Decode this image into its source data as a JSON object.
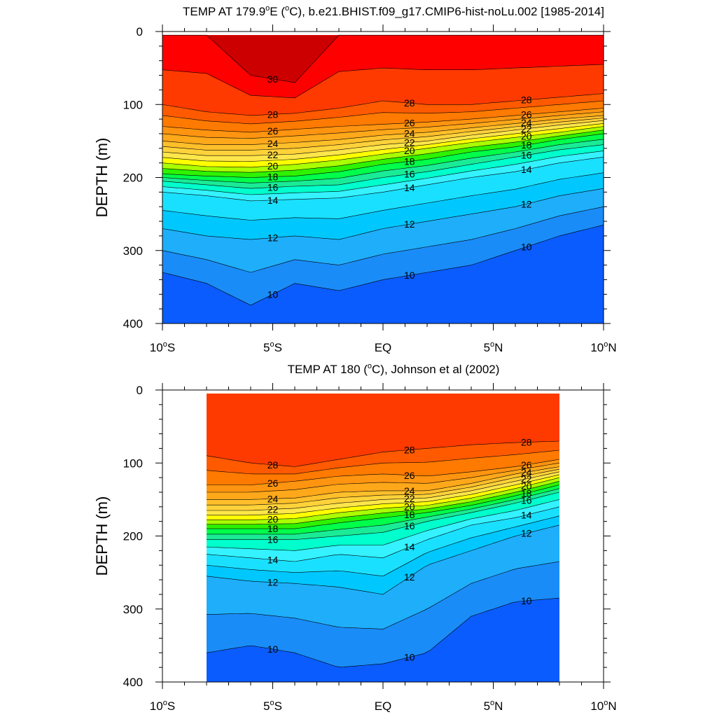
{
  "chart_data": [
    {
      "type": "contour",
      "title_parts": [
        "TEMP AT 179.9",
        "o",
        "E (",
        "o",
        "C), b.e21.BHIST.f09_g17.CMIP6-hist-noLu.002 [1985-2014]"
      ],
      "xlabel": "",
      "ylabel": "DEPTH (m)",
      "xlim": [
        -10,
        10
      ],
      "ylim": [
        400,
        0
      ],
      "x_ticks": [
        -10,
        -5,
        0,
        5,
        10
      ],
      "x_tick_labels": [
        [
          "10",
          "o",
          "S"
        ],
        [
          "5",
          "o",
          "S"
        ],
        [
          "EQ"
        ],
        [
          "5",
          "o",
          "N"
        ],
        [
          "10",
          "o",
          "N"
        ]
      ],
      "y_ticks": [
        0,
        100,
        200,
        300,
        400
      ],
      "y_tick_labels": [
        "0",
        "100",
        "200",
        "300",
        "400"
      ],
      "data_extent_lat": [
        -10,
        10
      ],
      "top_depth": 5,
      "contour_interval": 1,
      "contour_labels": [
        "30",
        "28",
        "26",
        "24",
        "22",
        "20",
        "18",
        "16",
        "14",
        "12",
        "10"
      ],
      "isotherm_depths": {
        "lat": [
          -10,
          -8,
          -6,
          -4,
          -2,
          0,
          2,
          4,
          6,
          8,
          10
        ],
        "10": [
          330,
          345,
          375,
          345,
          355,
          340,
          330,
          320,
          300,
          280,
          265
        ],
        "12": [
          270,
          280,
          285,
          280,
          285,
          270,
          260,
          250,
          240,
          225,
          215
        ],
        "14": [
          220,
          225,
          232,
          230,
          228,
          220,
          210,
          200,
          192,
          180,
          172
        ],
        "16": [
          205,
          210,
          215,
          212,
          210,
          200,
          192,
          182,
          172,
          162,
          155
        ],
        "18": [
          195,
          198,
          200,
          198,
          192,
          182,
          175,
          165,
          158,
          148,
          140
        ],
        "20": [
          180,
          185,
          186,
          182,
          176,
          168,
          160,
          152,
          145,
          138,
          130
        ],
        "22": [
          165,
          170,
          170,
          168,
          162,
          155,
          150,
          142,
          135,
          128,
          122
        ],
        "24": [
          150,
          155,
          155,
          152,
          148,
          142,
          138,
          132,
          126,
          120,
          115
        ],
        "26": [
          130,
          135,
          138,
          134,
          130,
          127,
          124,
          120,
          115,
          110,
          105
        ],
        "28": [
          100,
          110,
          115,
          112,
          105,
          95,
          100,
          100,
          95,
          90,
          85
        ],
        "30": [
          5,
          5,
          60,
          70,
          5,
          5,
          5,
          5,
          5,
          5,
          5
        ]
      }
    },
    {
      "type": "contour",
      "title_parts": [
        "TEMP AT 180 (",
        "o",
        "C), Johnson et al (2002)"
      ],
      "xlabel": "",
      "ylabel": "DEPTH (m)",
      "xlim": [
        -10,
        10
      ],
      "ylim": [
        400,
        0
      ],
      "x_ticks": [
        -10,
        -5,
        0,
        5,
        10
      ],
      "x_tick_labels": [
        [
          "10",
          "o",
          "S"
        ],
        [
          "5",
          "o",
          "S"
        ],
        [
          "EQ"
        ],
        [
          "5",
          "o",
          "N"
        ],
        [
          "10",
          "o",
          "N"
        ]
      ],
      "y_ticks": [
        0,
        100,
        200,
        300,
        400
      ],
      "y_tick_labels": [
        "0",
        "100",
        "200",
        "300",
        "400"
      ],
      "data_extent_lat": [
        -8,
        8
      ],
      "top_depth": 5,
      "contour_interval": 1,
      "contour_labels": [
        "28",
        "26",
        "24",
        "22",
        "20",
        "18",
        "16",
        "14",
        "12",
        "10",
        "28",
        "26",
        "24",
        "22",
        "20",
        "18",
        "16",
        "14",
        "12",
        "12",
        "10",
        "10"
      ],
      "isotherm_depths": {
        "lat": [
          -8,
          -6,
          -4,
          -2,
          0,
          2,
          4,
          6,
          8
        ],
        "10": [
          360,
          350,
          360,
          380,
          375,
          360,
          310,
          290,
          285
        ],
        "12": [
          255,
          262,
          265,
          270,
          280,
          240,
          220,
          200,
          185
        ],
        "14": [
          225,
          230,
          235,
          225,
          230,
          205,
          185,
          175,
          160
        ],
        "16": [
          205,
          205,
          205,
          200,
          195,
          180,
          168,
          155,
          140
        ],
        "18": [
          190,
          190,
          190,
          182,
          175,
          168,
          158,
          145,
          130
        ],
        "20": [
          178,
          178,
          176,
          168,
          162,
          158,
          148,
          135,
          120
        ],
        "22": [
          165,
          165,
          162,
          155,
          150,
          148,
          138,
          125,
          112
        ],
        "24": [
          150,
          150,
          148,
          140,
          138,
          138,
          128,
          115,
          105
        ],
        "26": [
          130,
          130,
          125,
          118,
          115,
          118,
          112,
          105,
          95
        ],
        "28": [
          90,
          100,
          105,
          95,
          85,
          80,
          75,
          72,
          70
        ]
      }
    }
  ]
}
